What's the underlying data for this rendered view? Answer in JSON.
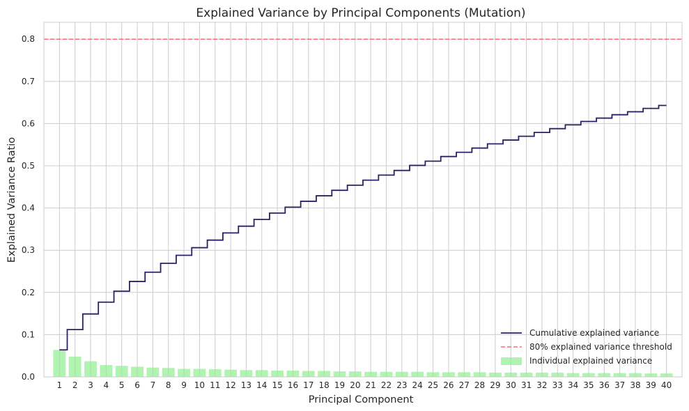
{
  "chart_data": {
    "type": "bar",
    "title": "Explained Variance by Principal Components (Mutation)",
    "xlabel": "Principal Component",
    "ylabel": "Explained Variance Ratio",
    "xlim": [
      0.0,
      41.0
    ],
    "ylim": [
      0.0,
      0.84
    ],
    "yticks": [
      0.0,
      0.1,
      0.2,
      0.3,
      0.4,
      0.5,
      0.6,
      0.7,
      0.8
    ],
    "ytick_labels": [
      "0.0",
      "0.1",
      "0.2",
      "0.3",
      "0.4",
      "0.5",
      "0.6",
      "0.7",
      "0.8"
    ],
    "categories": [
      "1",
      "2",
      "3",
      "4",
      "5",
      "6",
      "7",
      "8",
      "9",
      "10",
      "11",
      "12",
      "13",
      "14",
      "15",
      "16",
      "17",
      "18",
      "19",
      "20",
      "21",
      "22",
      "23",
      "24",
      "25",
      "26",
      "27",
      "28",
      "29",
      "30",
      "31",
      "32",
      "33",
      "34",
      "35",
      "36",
      "37",
      "38",
      "39",
      "40"
    ],
    "grid": true,
    "legend_position": "lower-right",
    "series": [
      {
        "name": "Individual explained variance",
        "type": "bar",
        "color": "#90ee90",
        "values": [
          0.064,
          0.048,
          0.037,
          0.028,
          0.026,
          0.024,
          0.022,
          0.021,
          0.019,
          0.019,
          0.018,
          0.017,
          0.016,
          0.016,
          0.015,
          0.015,
          0.014,
          0.014,
          0.013,
          0.013,
          0.012,
          0.012,
          0.012,
          0.012,
          0.011,
          0.011,
          0.011,
          0.011,
          0.01,
          0.01,
          0.01,
          0.01,
          0.01,
          0.009,
          0.009,
          0.009,
          0.009,
          0.009,
          0.008,
          0.008
        ]
      },
      {
        "name": "Cumulative explained variance",
        "type": "step",
        "color": "#2e1f66",
        "values": [
          0.064,
          0.112,
          0.149,
          0.177,
          0.203,
          0.226,
          0.248,
          0.269,
          0.288,
          0.306,
          0.324,
          0.341,
          0.357,
          0.373,
          0.388,
          0.402,
          0.416,
          0.429,
          0.442,
          0.454,
          0.466,
          0.478,
          0.489,
          0.501,
          0.511,
          0.522,
          0.532,
          0.542,
          0.552,
          0.561,
          0.57,
          0.579,
          0.588,
          0.597,
          0.605,
          0.613,
          0.621,
          0.628,
          0.636,
          0.643
        ]
      }
    ],
    "threshold": {
      "name": "80% explained variance threshold",
      "value": 0.8,
      "color": "#ff6b6b"
    }
  }
}
